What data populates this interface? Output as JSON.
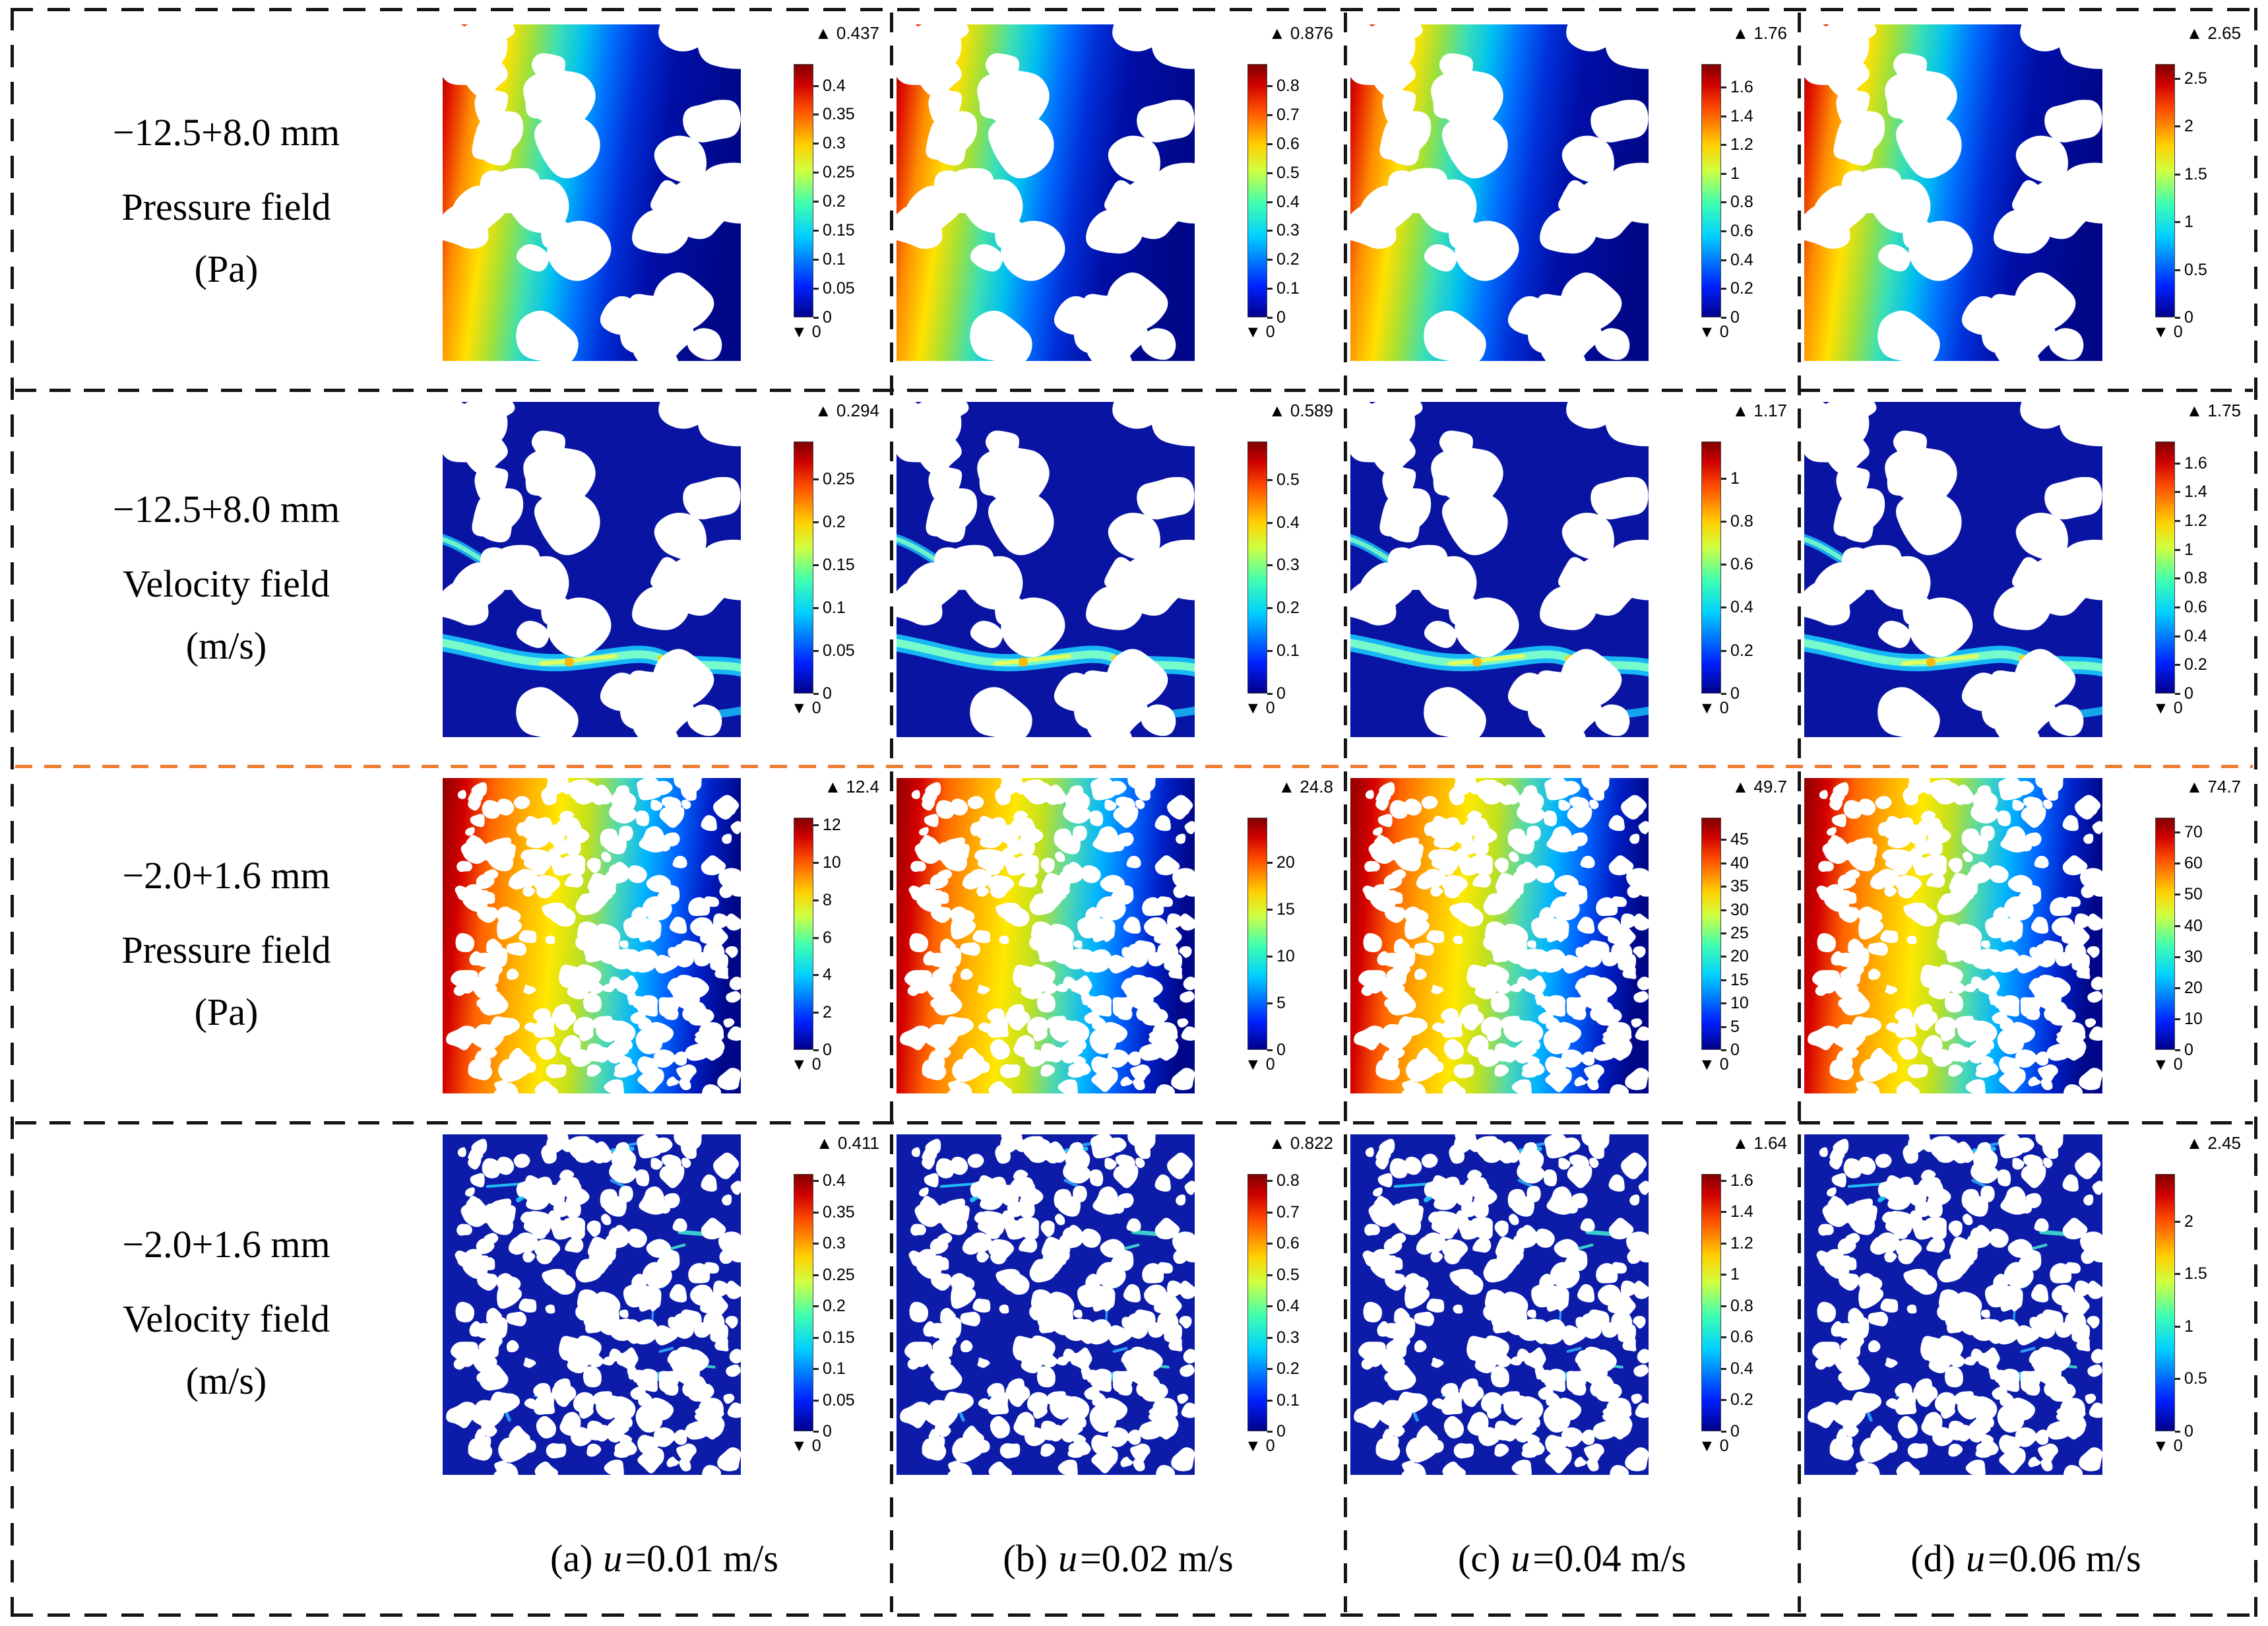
{
  "figure": {
    "colors": {
      "accent_orange": "#ED7D31",
      "border_black": "#141414",
      "colormap": "rainbow (jet)"
    },
    "colorbar": {
      "max_marker": "▲",
      "min_marker": "▼",
      "min_label": "0"
    },
    "rows": [
      {
        "label_lines": [
          "−12.5+8.0 mm",
          "Pressure field",
          "(Pa)"
        ],
        "medium": "coarse",
        "field": "pressure",
        "panels": [
          {
            "max": "0.437",
            "ticks": [
              "0.4",
              "0.35",
              "0.3",
              "0.25",
              "0.2",
              "0.15",
              "0.1",
              "0.05",
              "0"
            ]
          },
          {
            "max": "0.876",
            "ticks": [
              "0.8",
              "0.7",
              "0.6",
              "0.5",
              "0.4",
              "0.3",
              "0.2",
              "0.1",
              "0"
            ]
          },
          {
            "max": "1.76",
            "ticks": [
              "1.6",
              "1.4",
              "1.2",
              "1",
              "0.8",
              "0.6",
              "0.4",
              "0.2",
              "0"
            ]
          },
          {
            "max": "2.65",
            "ticks": [
              "2.5",
              "2",
              "1.5",
              "1",
              "0.5",
              "0"
            ]
          }
        ]
      },
      {
        "label_lines": [
          "−12.5+8.0 mm",
          "Velocity field",
          "(m/s)"
        ],
        "medium": "coarse",
        "field": "velocity",
        "panels": [
          {
            "max": "0.294",
            "ticks": [
              "0.25",
              "0.2",
              "0.15",
              "0.1",
              "0.05",
              "0"
            ]
          },
          {
            "max": "0.589",
            "ticks": [
              "0.5",
              "0.4",
              "0.3",
              "0.2",
              "0.1",
              "0"
            ]
          },
          {
            "max": "1.17",
            "ticks": [
              "1",
              "0.8",
              "0.6",
              "0.4",
              "0.2",
              "0"
            ]
          },
          {
            "max": "1.75",
            "ticks": [
              "1.6",
              "1.4",
              "1.2",
              "1",
              "0.8",
              "0.6",
              "0.4",
              "0.2",
              "0"
            ]
          }
        ]
      },
      {
        "label_lines": [
          "−2.0+1.6 mm",
          "Pressure field",
          "(Pa)"
        ],
        "medium": "fine",
        "field": "pressure",
        "panels": [
          {
            "max": "12.4",
            "ticks": [
              "12",
              "10",
              "8",
              "6",
              "4",
              "2",
              "0"
            ]
          },
          {
            "max": "24.8",
            "ticks": [
              "20",
              "15",
              "10",
              "5",
              "0"
            ]
          },
          {
            "max": "49.7",
            "ticks": [
              "45",
              "40",
              "35",
              "30",
              "25",
              "20",
              "15",
              "10",
              "5",
              "0"
            ]
          },
          {
            "max": "74.7",
            "ticks": [
              "70",
              "60",
              "50",
              "40",
              "30",
              "20",
              "10",
              "0"
            ]
          }
        ]
      },
      {
        "label_lines": [
          "−2.0+1.6 mm",
          "Velocity field",
          "(m/s)"
        ],
        "medium": "fine",
        "field": "velocity",
        "panels": [
          {
            "max": "0.411",
            "ticks": [
              "0.4",
              "0.35",
              "0.3",
              "0.25",
              "0.2",
              "0.15",
              "0.1",
              "0.05",
              "0"
            ]
          },
          {
            "max": "0.822",
            "ticks": [
              "0.8",
              "0.7",
              "0.6",
              "0.5",
              "0.4",
              "0.3",
              "0.2",
              "0.1",
              "0"
            ]
          },
          {
            "max": "1.64",
            "ticks": [
              "1.6",
              "1.4",
              "1.2",
              "1",
              "0.8",
              "0.6",
              "0.4",
              "0.2",
              "0"
            ]
          },
          {
            "max": "2.45",
            "ticks": [
              "2",
              "1.5",
              "1",
              "0.5",
              "0"
            ]
          }
        ]
      }
    ],
    "captions": [
      {
        "prefix": "(a)",
        "symbol": "u",
        "suffix": "=0.01 m/s"
      },
      {
        "prefix": "(b)",
        "symbol": "u",
        "suffix": "=0.02 m/s"
      },
      {
        "prefix": "(c)",
        "symbol": "u",
        "suffix": "=0.04 m/s"
      },
      {
        "prefix": "(d)",
        "symbol": "u",
        "suffix": "=0.06 m/s"
      }
    ]
  },
  "chart_data": {
    "type": "heatmap",
    "description": "4×4 grid of pore-scale CFD field plots for two particle size fractions at four inlet velocities; each panel shows a spatial field with a rainbow colorbar from 0 to the panel maximum.",
    "columns": [
      {
        "label": "(a) u=0.01 m/s",
        "u_m_per_s": 0.01
      },
      {
        "label": "(b) u=0.02 m/s",
        "u_m_per_s": 0.02
      },
      {
        "label": "(c) u=0.04 m/s",
        "u_m_per_s": 0.04
      },
      {
        "label": "(d) u=0.06 m/s",
        "u_m_per_s": 0.06
      }
    ],
    "rows": [
      {
        "sample": "−12.5+8.0 mm",
        "field": "Pressure field (Pa)",
        "panel_max": [
          0.437,
          0.876,
          1.76,
          2.65
        ],
        "panel_min": 0
      },
      {
        "sample": "−12.5+8.0 mm",
        "field": "Velocity field (m/s)",
        "panel_max": [
          0.294,
          0.589,
          1.17,
          1.75
        ],
        "panel_min": 0
      },
      {
        "sample": "−2.0+1.6 mm",
        "field": "Pressure field (Pa)",
        "panel_max": [
          12.4,
          24.8,
          49.7,
          74.7
        ],
        "panel_min": 0
      },
      {
        "sample": "−2.0+1.6 mm",
        "field": "Velocity field (m/s)",
        "panel_max": [
          0.411,
          0.822,
          1.64,
          2.45
        ],
        "panel_min": 0
      }
    ],
    "colormap": "rainbow (jet)",
    "legend_position": "right of each panel"
  }
}
